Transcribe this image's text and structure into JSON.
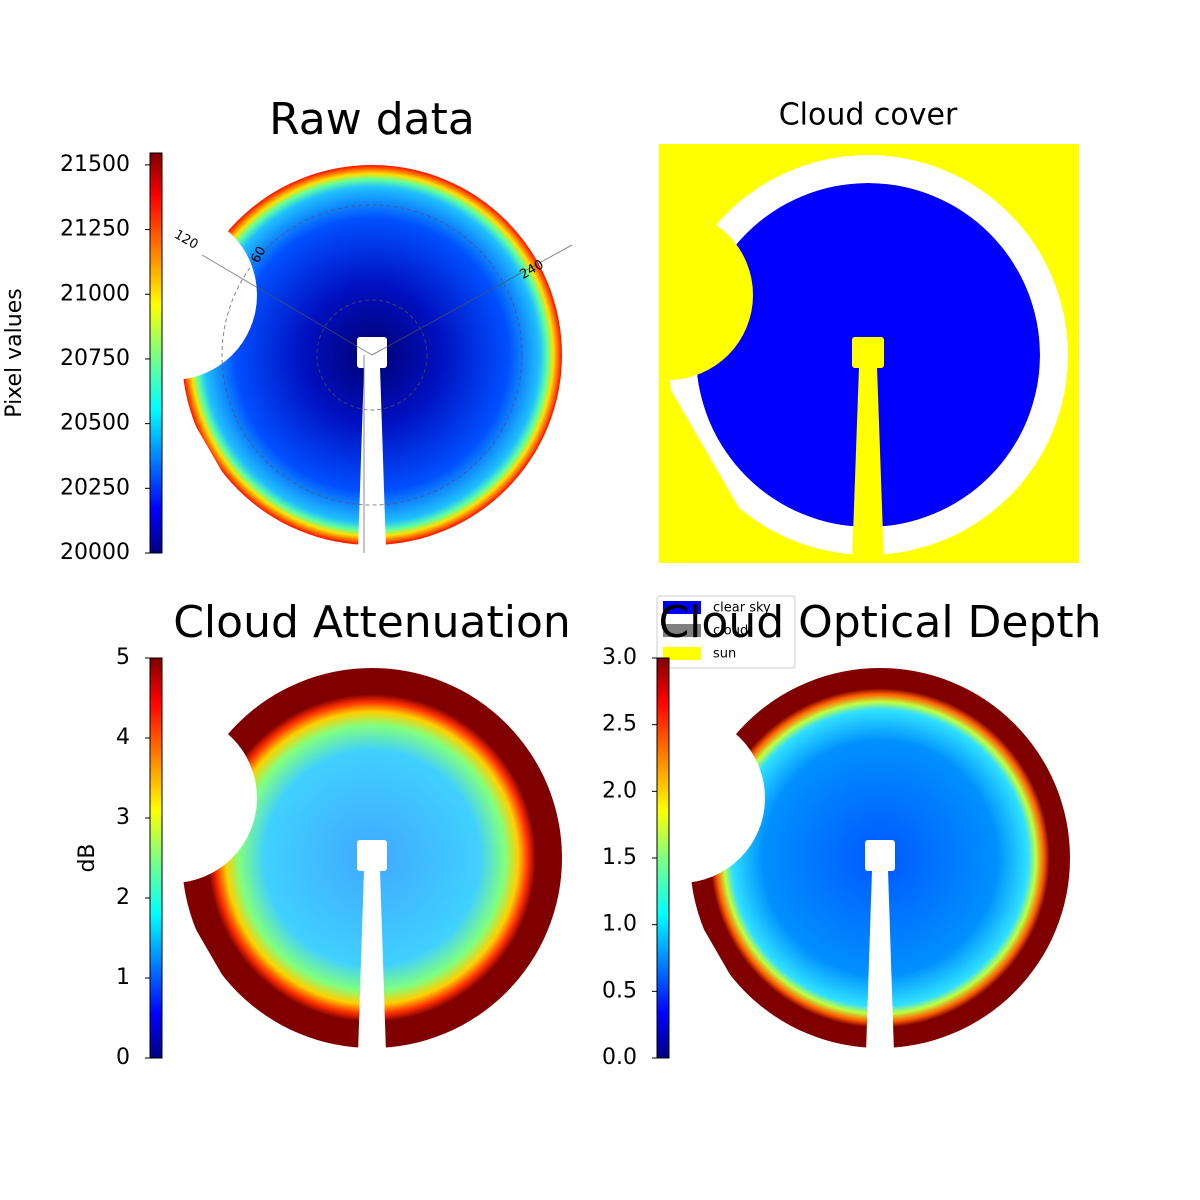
{
  "chart_data": [
    {
      "type": "image",
      "title": "Raw data",
      "colormap": "jet",
      "colorbar": {
        "label": "Pixel values",
        "lim": [
          20000,
          21546
        ],
        "ticks": [
          20000,
          20250,
          20500,
          20750,
          21000,
          21250,
          21500
        ]
      },
      "annotations": [
        "120",
        "60",
        "240"
      ]
    },
    {
      "type": "categorical-image",
      "title": "Cloud cover",
      "categories": [
        "clear sky",
        "cloud",
        "sun"
      ],
      "colors": [
        "#0000ff",
        "#808080",
        "#ffff00"
      ]
    },
    {
      "type": "image",
      "title": "Cloud Attenuation",
      "colormap": "jet",
      "colorbar": {
        "label": "dB",
        "lim": [
          0,
          5
        ],
        "ticks": [
          0,
          1,
          2,
          3,
          4,
          5
        ]
      }
    },
    {
      "type": "image",
      "title": "Cloud Optical Depth",
      "colormap": "jet",
      "colorbar": {
        "lim": [
          0,
          3
        ],
        "ticks": [
          {
            "value": 0,
            "label": "0.0"
          },
          {
            "value": 0.5,
            "label": "0.5"
          },
          {
            "value": 1,
            "label": "1.0"
          },
          {
            "value": 1.5,
            "label": "1.5"
          },
          {
            "value": 2,
            "label": "2.0"
          },
          {
            "value": 2.5,
            "label": "2.5"
          },
          {
            "value": 3,
            "label": "3.0"
          }
        ]
      }
    }
  ]
}
